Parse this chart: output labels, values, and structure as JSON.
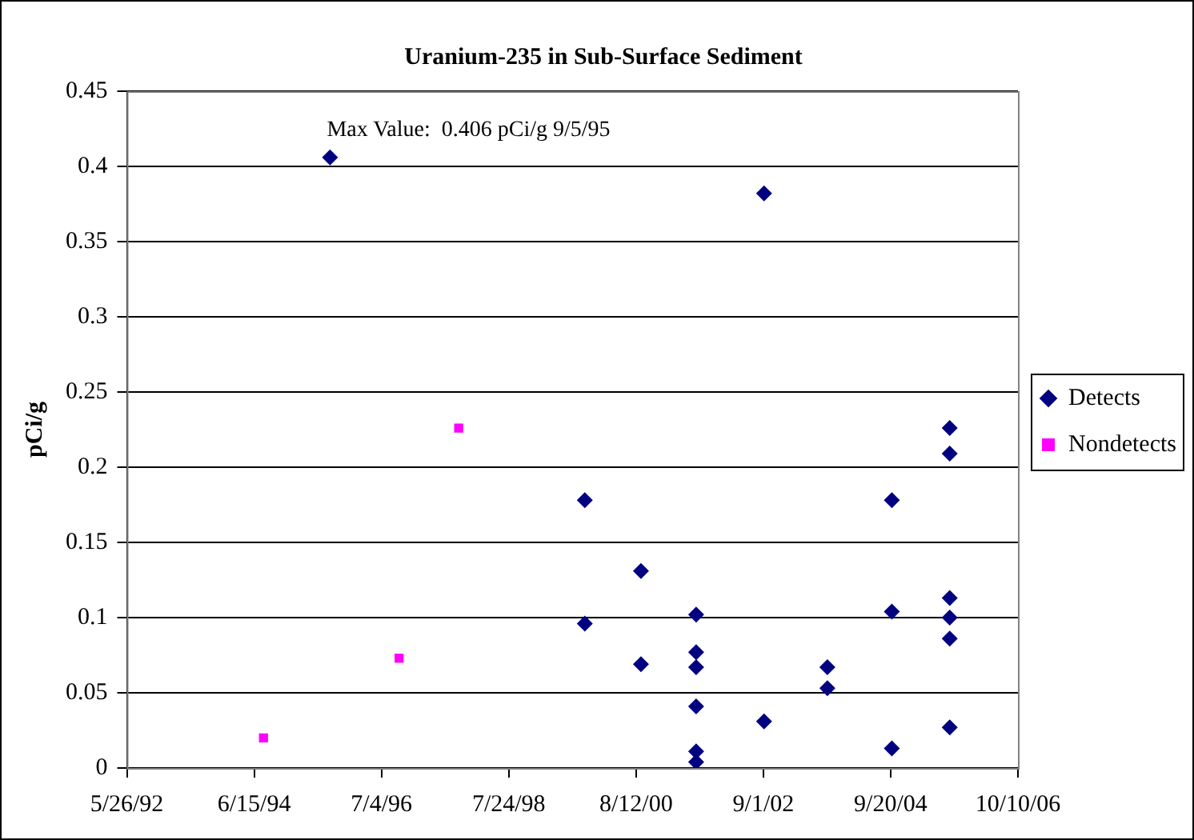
{
  "chart_data": {
    "type": "scatter",
    "title": "Uranium-235 in Sub-Surface Sediment",
    "ylabel": "pCi/g",
    "xlim": [
      "1992-05-26",
      "2006-10-10"
    ],
    "xticks": [
      {
        "value": "1992-05-26",
        "label": "5/26/92"
      },
      {
        "value": "1994-06-15",
        "label": "6/15/94"
      },
      {
        "value": "1996-07-04",
        "label": "7/4/96"
      },
      {
        "value": "1998-07-24",
        "label": "7/24/98"
      },
      {
        "value": "2000-08-12",
        "label": "8/12/00"
      },
      {
        "value": "2002-09-01",
        "label": "9/1/02"
      },
      {
        "value": "2004-09-20",
        "label": "9/20/04"
      },
      {
        "value": "2006-10-10",
        "label": "10/10/06"
      }
    ],
    "ylim": [
      0,
      0.45
    ],
    "yticks": [
      0,
      0.05,
      0.1,
      0.15,
      0.2,
      0.25,
      0.3,
      0.35,
      0.4,
      0.45
    ],
    "grid": "y",
    "legend": "right",
    "annotations": [
      {
        "text": "Max Value:  0.406 pCi/g 9/5/95",
        "x": "1995-09-05",
        "y": 0.406
      }
    ],
    "series": [
      {
        "name": "Detects",
        "color": "#000080",
        "marker": "diamond",
        "x": [
          "1995-09-05",
          "1999-10-15",
          "1999-10-15",
          "2000-09-10",
          "2000-09-10",
          "2001-08-01",
          "2001-08-01",
          "2001-08-01",
          "2001-08-01",
          "2001-08-01",
          "2001-08-01",
          "2002-09-05",
          "2002-09-05",
          "2003-09-13",
          "2003-09-13",
          "2004-09-27",
          "2004-09-27",
          "2004-09-27",
          "2005-09-03",
          "2005-09-03",
          "2005-09-03",
          "2005-09-03",
          "2005-09-03",
          "2005-09-03"
        ],
        "values": [
          0.406,
          0.178,
          0.096,
          0.131,
          0.069,
          0.102,
          0.077,
          0.067,
          0.041,
          0.011,
          0.004,
          0.382,
          0.031,
          0.067,
          0.053,
          0.178,
          0.104,
          0.013,
          0.226,
          0.209,
          0.113,
          0.1,
          0.086,
          0.027
        ]
      },
      {
        "name": "Nondetects",
        "color": "#ff00ff",
        "marker": "square",
        "x": [
          "1994-08-09",
          "1996-10-16",
          "1997-10-02"
        ],
        "values": [
          0.02,
          0.073,
          0.226
        ]
      }
    ]
  }
}
